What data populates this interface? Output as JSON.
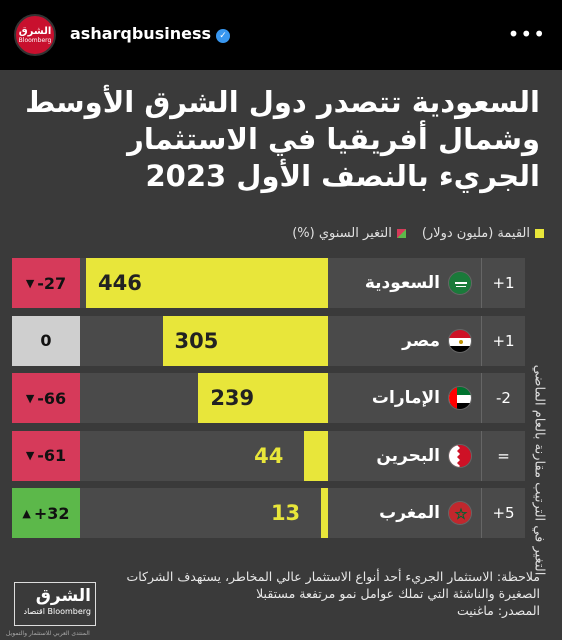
{
  "header": {
    "avatar_top": "الشرق",
    "avatar_bottom": "Bloomberg",
    "username": "asharqbusiness",
    "verified_icon": "verified-check-icon",
    "more_icon": "more-options-icon"
  },
  "card": {
    "title": "السعودية تتصدر دول الشرق الأوسط وشمال أفريقيا في الاستثمار الجريء بالنصف الأول 2023",
    "vertical_label": "التغير في الترتيب مقارنة بالعام الماضي",
    "note": "ملاحظة: الاستثمار الجريء أحد أنواع الاستثمار عالي المخاطر، يستهدف الشركات الصغيرة والناشئة التي تملك عوامل نمو مرتفعة مستقبلا",
    "source": "المصدر: ماغنيت",
    "brand_top": "الشرق",
    "brand_bottom": "اقتصاد Bloomberg",
    "watermark": "المنتدى العربي للاستثمار والتمويل"
  },
  "colors": {
    "bar": "#e8e63a",
    "negative": "#d63a5a",
    "neutral": "#cfcfcf",
    "positive": "#5cb84a"
  },
  "chart_data": {
    "type": "bar",
    "title": "السعودية تتصدر دول الشرق الأوسط وشمال أفريقيا في الاستثمار الجريء بالنصف الأول 2023",
    "legend": [
      {
        "label": "القيمة (مليون دولار)",
        "color": "#e8e63a"
      },
      {
        "label": "التغير السنوي (%)",
        "color": "split-red-green"
      }
    ],
    "legend_position": "top-right",
    "categories": [
      "السعودية",
      "مصر",
      "الإمارات",
      "البحرين",
      "المغرب"
    ],
    "values": [
      446,
      305,
      239,
      44,
      13
    ],
    "value_labels": [
      "446",
      "305",
      "239",
      "44",
      "13"
    ],
    "max_value": 446,
    "annual_change_labels": [
      "-27",
      "0",
      "-66",
      "-61",
      "+32"
    ],
    "annual_change_direction": [
      "down",
      "flat",
      "down",
      "down",
      "up"
    ],
    "rank_change_labels": [
      "+1",
      "+1",
      "-2",
      "=",
      "+5"
    ],
    "flags": [
      "saudi-flag-icon",
      "egypt-flag-icon",
      "uae-flag-icon",
      "bahrain-flag-icon",
      "morocco-flag-icon"
    ]
  }
}
